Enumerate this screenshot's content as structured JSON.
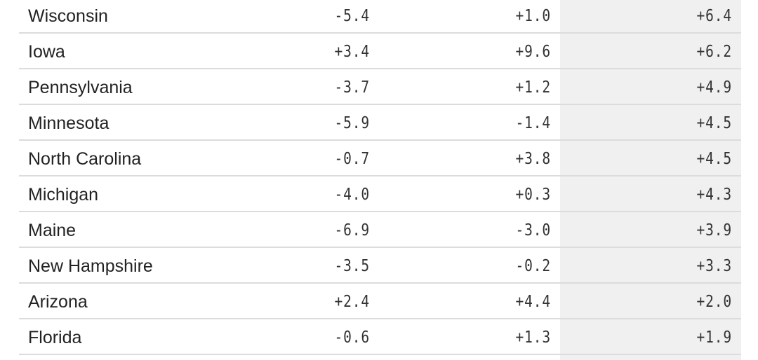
{
  "table": {
    "rows": [
      [
        "Wisconsin",
        "-5.4",
        "+1.0",
        "+6.4"
      ],
      [
        "Iowa",
        "+3.4",
        "+9.6",
        "+6.2"
      ],
      [
        "Pennsylvania",
        "-3.7",
        "+1.2",
        "+4.9"
      ],
      [
        "Minnesota",
        "-5.9",
        "-1.4",
        "+4.5"
      ],
      [
        "North Carolina",
        "-0.7",
        "+3.8",
        "+4.5"
      ],
      [
        "Michigan",
        "-4.0",
        "+0.3",
        "+4.3"
      ],
      [
        "Maine",
        "-6.9",
        "-3.0",
        "+3.9"
      ],
      [
        "New Hampshire",
        "-3.5",
        "-0.2",
        "+3.3"
      ],
      [
        "Arizona",
        "+2.4",
        "+4.4",
        "+2.0"
      ],
      [
        "Florida",
        "-0.6",
        "+1.3",
        "+1.9"
      ]
    ]
  }
}
